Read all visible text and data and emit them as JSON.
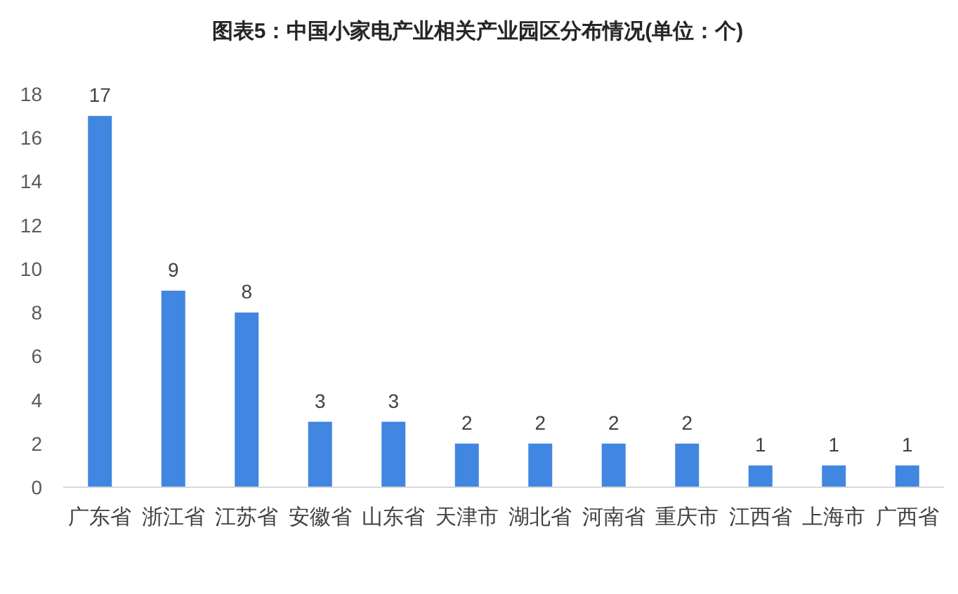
{
  "chart_data": {
    "type": "bar",
    "title": "图表5：中国小家电产业相关产业园区分布情况(单位：个)",
    "categories": [
      "广东省",
      "浙江省",
      "江苏省",
      "安徽省",
      "山东省",
      "天津市",
      "湖北省",
      "河南省",
      "重庆市",
      "江西省",
      "上海市",
      "广西省"
    ],
    "values": [
      17,
      9,
      8,
      3,
      3,
      2,
      2,
      2,
      2,
      1,
      1,
      1
    ],
    "color": "#4186e0",
    "ylim": [
      0,
      18
    ],
    "yticks": [
      0,
      2,
      4,
      6,
      8,
      10,
      12,
      14,
      16,
      18
    ],
    "data_labels": true
  }
}
